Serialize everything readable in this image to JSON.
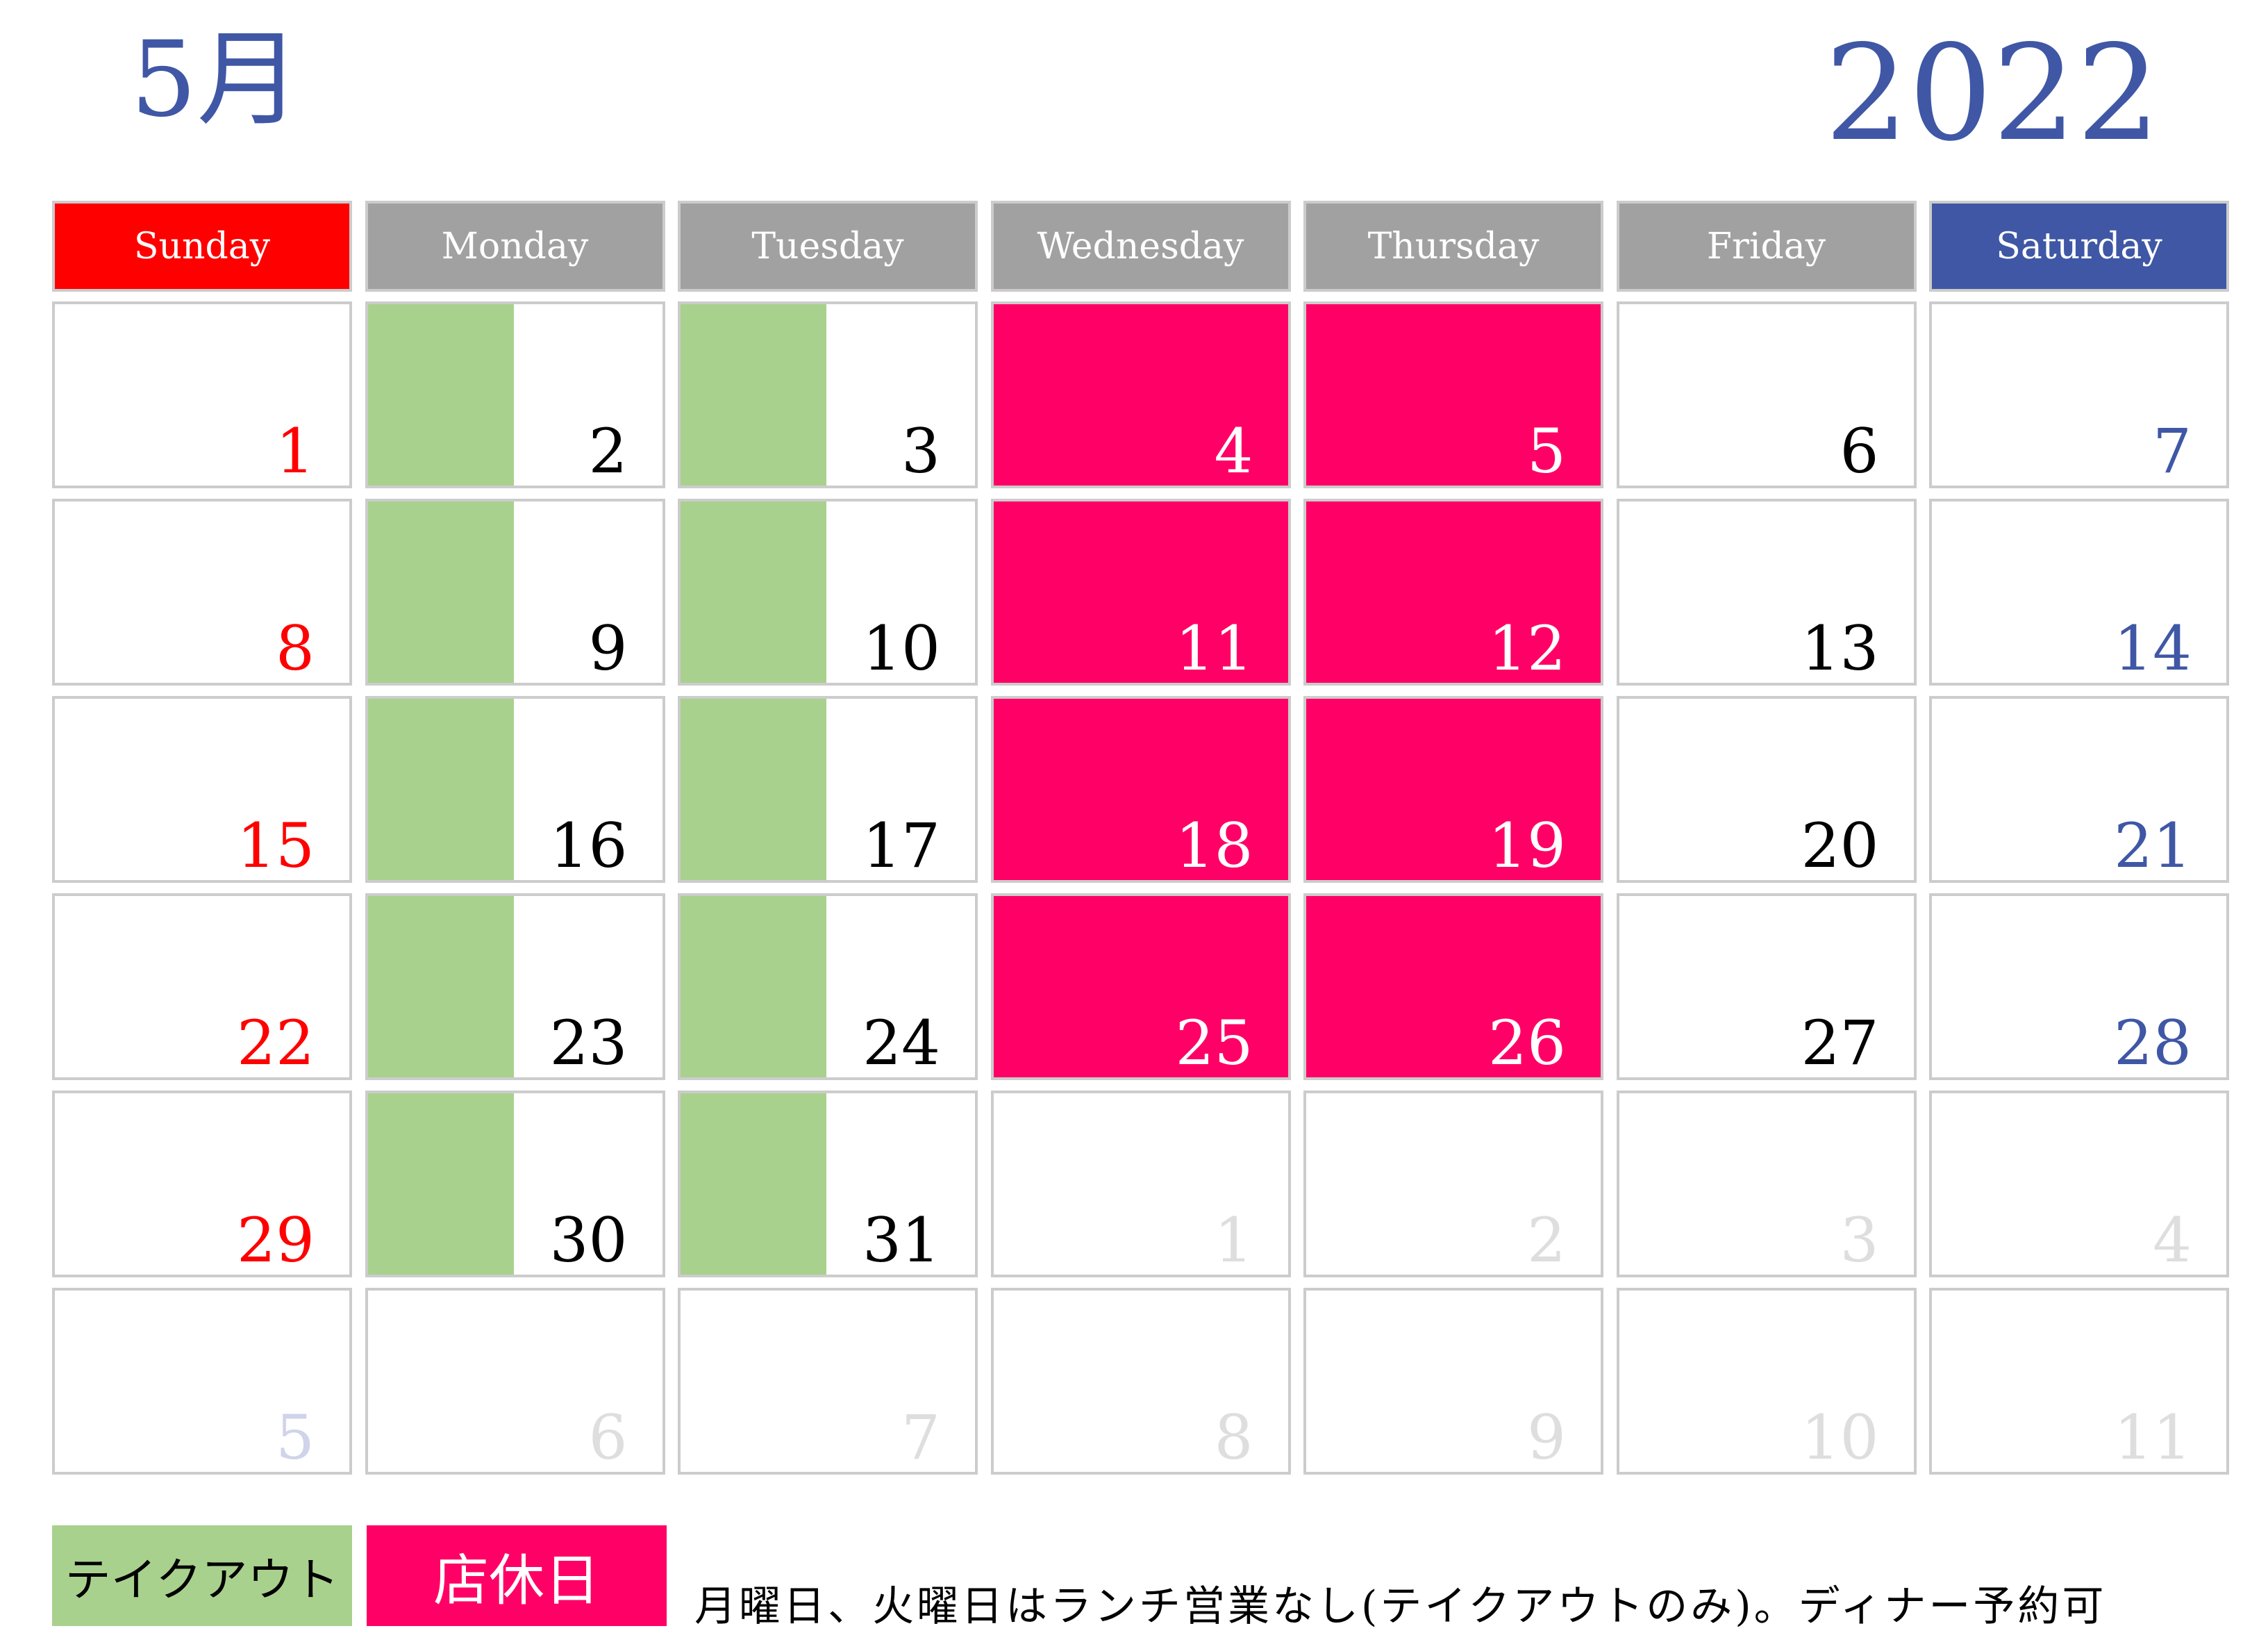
{
  "header": {
    "month": "5月",
    "year": "2022"
  },
  "weekdays": [
    "Sunday",
    "Monday",
    "Tuesday",
    "Wednesday",
    "Thursday",
    "Friday",
    "Saturday"
  ],
  "weeks": [
    [
      {
        "day": "1",
        "in_month": true,
        "status": "open"
      },
      {
        "day": "2",
        "in_month": true,
        "status": "takeout"
      },
      {
        "day": "3",
        "in_month": true,
        "status": "takeout"
      },
      {
        "day": "4",
        "in_month": true,
        "status": "closed"
      },
      {
        "day": "5",
        "in_month": true,
        "status": "closed"
      },
      {
        "day": "6",
        "in_month": true,
        "status": "open"
      },
      {
        "day": "7",
        "in_month": true,
        "status": "open"
      }
    ],
    [
      {
        "day": "8",
        "in_month": true,
        "status": "open"
      },
      {
        "day": "9",
        "in_month": true,
        "status": "takeout"
      },
      {
        "day": "10",
        "in_month": true,
        "status": "takeout"
      },
      {
        "day": "11",
        "in_month": true,
        "status": "closed"
      },
      {
        "day": "12",
        "in_month": true,
        "status": "closed"
      },
      {
        "day": "13",
        "in_month": true,
        "status": "open"
      },
      {
        "day": "14",
        "in_month": true,
        "status": "open"
      }
    ],
    [
      {
        "day": "15",
        "in_month": true,
        "status": "open"
      },
      {
        "day": "16",
        "in_month": true,
        "status": "takeout"
      },
      {
        "day": "17",
        "in_month": true,
        "status": "takeout"
      },
      {
        "day": "18",
        "in_month": true,
        "status": "closed"
      },
      {
        "day": "19",
        "in_month": true,
        "status": "closed"
      },
      {
        "day": "20",
        "in_month": true,
        "status": "open"
      },
      {
        "day": "21",
        "in_month": true,
        "status": "open"
      }
    ],
    [
      {
        "day": "22",
        "in_month": true,
        "status": "open"
      },
      {
        "day": "23",
        "in_month": true,
        "status": "takeout"
      },
      {
        "day": "24",
        "in_month": true,
        "status": "takeout"
      },
      {
        "day": "25",
        "in_month": true,
        "status": "closed"
      },
      {
        "day": "26",
        "in_month": true,
        "status": "closed"
      },
      {
        "day": "27",
        "in_month": true,
        "status": "open"
      },
      {
        "day": "28",
        "in_month": true,
        "status": "open"
      }
    ],
    [
      {
        "day": "29",
        "in_month": true,
        "status": "open"
      },
      {
        "day": "30",
        "in_month": true,
        "status": "takeout"
      },
      {
        "day": "31",
        "in_month": true,
        "status": "takeout"
      },
      {
        "day": "1",
        "in_month": false,
        "status": "open"
      },
      {
        "day": "2",
        "in_month": false,
        "status": "open"
      },
      {
        "day": "3",
        "in_month": false,
        "status": "open"
      },
      {
        "day": "4",
        "in_month": false,
        "status": "open"
      }
    ],
    [
      {
        "day": "5",
        "in_month": false,
        "status": "open"
      },
      {
        "day": "6",
        "in_month": false,
        "status": "open"
      },
      {
        "day": "7",
        "in_month": false,
        "status": "open"
      },
      {
        "day": "8",
        "in_month": false,
        "status": "open"
      },
      {
        "day": "9",
        "in_month": false,
        "status": "open"
      },
      {
        "day": "10",
        "in_month": false,
        "status": "open"
      },
      {
        "day": "11",
        "in_month": false,
        "status": "open"
      }
    ]
  ],
  "legend": {
    "takeout_label": "テイクアウト",
    "closed_label": "店休日"
  },
  "note": "月曜日、火曜日はランチ営業なし(テイクアウトのみ)。ディナー予約可",
  "colors": {
    "title": "#3f57a5",
    "sunday": "#ff0000",
    "saturday": "#3f57a5",
    "weekday_header": "#a1a1a1",
    "closed": "#ff0066",
    "takeout": "#a9d18e"
  }
}
